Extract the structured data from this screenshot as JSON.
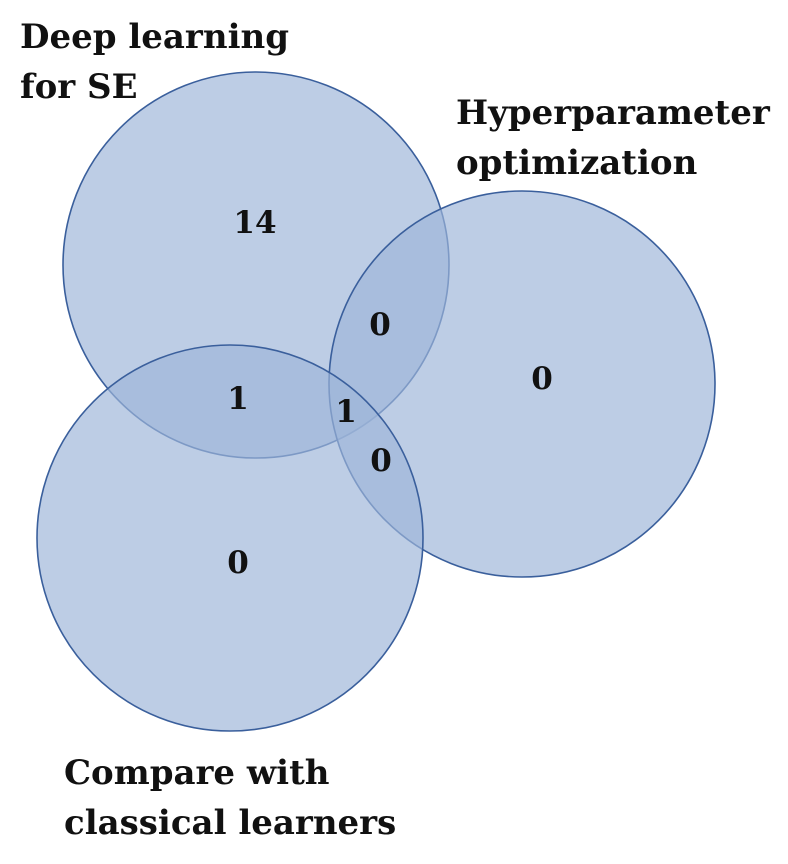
{
  "colors": {
    "circle_fill": "#9db5d8",
    "circle_stroke": "#3a5f9c",
    "text": "#111111"
  },
  "sets": [
    {
      "id": "a",
      "label_lines": [
        "Deep learning",
        "for SE"
      ]
    },
    {
      "id": "b",
      "label_lines": [
        "Hyperparameter",
        "optimization"
      ]
    },
    {
      "id": "c",
      "label_lines": [
        "Compare with",
        "classical learners"
      ]
    }
  ],
  "regions": {
    "a_only": "14",
    "b_only": "0",
    "c_only": "0",
    "a_b": "0",
    "a_c": "1",
    "b_c": "0",
    "a_b_c": "1"
  }
}
